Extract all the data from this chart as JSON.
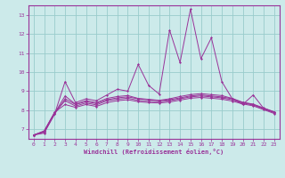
{
  "bg_color": "#cceaea",
  "grid_color": "#99cccc",
  "line_color": "#993399",
  "xlim": [
    -0.5,
    23.5
  ],
  "ylim": [
    6.5,
    13.5
  ],
  "yticks": [
    7,
    8,
    9,
    10,
    11,
    12,
    13
  ],
  "xticks": [
    0,
    1,
    2,
    3,
    4,
    5,
    6,
    7,
    8,
    9,
    10,
    11,
    12,
    13,
    14,
    15,
    16,
    17,
    18,
    19,
    20,
    21,
    22,
    23
  ],
  "xlabel": "Windchill (Refroidissement éolien,°C)",
  "series": [
    [
      6.7,
      6.8,
      7.8,
      9.5,
      8.4,
      8.6,
      8.5,
      8.8,
      9.1,
      9.0,
      10.4,
      9.3,
      8.85,
      12.2,
      10.5,
      13.3,
      10.7,
      11.8,
      9.5,
      8.6,
      8.3,
      8.8,
      8.1,
      7.9
    ],
    [
      6.7,
      6.85,
      7.8,
      8.6,
      8.3,
      8.45,
      8.35,
      8.55,
      8.65,
      8.7,
      8.6,
      8.55,
      8.5,
      8.55,
      8.65,
      8.75,
      8.8,
      8.75,
      8.7,
      8.6,
      8.4,
      8.3,
      8.1,
      7.9
    ],
    [
      6.7,
      6.88,
      7.85,
      8.75,
      8.32,
      8.5,
      8.4,
      8.62,
      8.72,
      8.77,
      8.62,
      8.57,
      8.52,
      8.6,
      8.72,
      8.82,
      8.87,
      8.82,
      8.77,
      8.62,
      8.42,
      8.32,
      8.12,
      7.92
    ],
    [
      6.7,
      6.9,
      7.9,
      8.3,
      8.15,
      8.3,
      8.2,
      8.4,
      8.5,
      8.55,
      8.45,
      8.4,
      8.38,
      8.43,
      8.53,
      8.63,
      8.67,
      8.63,
      8.58,
      8.48,
      8.33,
      8.23,
      8.03,
      7.83
    ],
    [
      6.7,
      6.92,
      7.88,
      8.5,
      8.22,
      8.38,
      8.28,
      8.5,
      8.58,
      8.63,
      8.52,
      8.47,
      8.44,
      8.5,
      8.6,
      8.7,
      8.75,
      8.7,
      8.65,
      8.55,
      8.38,
      8.27,
      8.07,
      7.87
    ]
  ]
}
